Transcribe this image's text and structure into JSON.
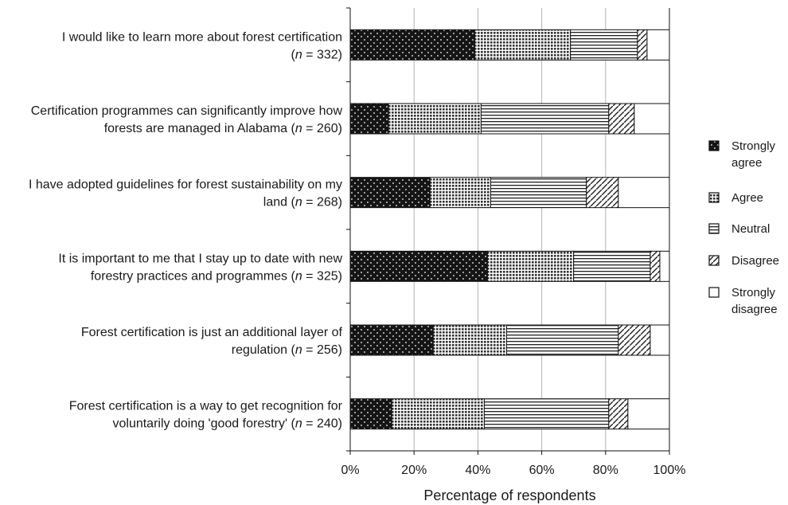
{
  "chart_data": {
    "type": "bar",
    "orientation": "horizontal",
    "stacked": true,
    "xlabel": "Percentage of respondents",
    "xlim": [
      0,
      100
    ],
    "xticks": [
      "0%",
      "20%",
      "40%",
      "60%",
      "80%",
      "100%"
    ],
    "grid": "vertical",
    "legend_position": "right",
    "categories": [
      {
        "lines": [
          [
            {
              "t": "I would like to learn more about forest certification"
            }
          ],
          [
            {
              "t": "("
            },
            {
              "t": "n",
              "i": true
            },
            {
              "t": " = 332)"
            }
          ]
        ]
      },
      {
        "lines": [
          [
            {
              "t": "Certification programmes can significantly improve how"
            }
          ],
          [
            {
              "t": "forests are managed in Alabama  ("
            },
            {
              "t": "n",
              "i": true
            },
            {
              "t": " = 260)"
            }
          ]
        ]
      },
      {
        "lines": [
          [
            {
              "t": "I have adopted guidelines for forest sustainability on my"
            }
          ],
          [
            {
              "t": "land  ("
            },
            {
              "t": "n",
              "i": true
            },
            {
              "t": " = 268)"
            }
          ]
        ]
      },
      {
        "lines": [
          [
            {
              "t": "It is important to me that I stay up to date with new"
            }
          ],
          [
            {
              "t": "forestry practices and programmes  ("
            },
            {
              "t": "n",
              "i": true
            },
            {
              "t": " = 325)"
            }
          ]
        ]
      },
      {
        "lines": [
          [
            {
              "t": "Forest certification is just an additional layer of"
            }
          ],
          [
            {
              "t": "regulation  ("
            },
            {
              "t": "n",
              "i": true
            },
            {
              "t": " = 256)"
            }
          ]
        ]
      },
      {
        "lines": [
          [
            {
              "t": "Forest certification is a way to get recognition for"
            }
          ],
          [
            {
              "t": "voluntarily doing 'good forestry'  ("
            },
            {
              "t": "n",
              "i": true
            },
            {
              "t": " = 240)"
            }
          ]
        ]
      }
    ],
    "series": [
      {
        "name": [
          "Strongly",
          "agree"
        ],
        "pattern": "dots-dark",
        "values": [
          39,
          12,
          25,
          43,
          26,
          13
        ]
      },
      {
        "name": [
          "Agree"
        ],
        "pattern": "dots-grid",
        "values": [
          30,
          29,
          19,
          27,
          23,
          29
        ]
      },
      {
        "name": [
          "Neutral"
        ],
        "pattern": "hlines",
        "values": [
          21,
          40,
          30,
          24,
          35,
          39
        ]
      },
      {
        "name": [
          "Disagree"
        ],
        "pattern": "diagonal",
        "values": [
          3,
          8,
          10,
          3,
          10,
          6
        ]
      },
      {
        "name": [
          "Strongly",
          "disagree"
        ],
        "pattern": "white",
        "values": [
          7,
          11,
          16,
          3,
          6,
          13
        ]
      }
    ]
  }
}
